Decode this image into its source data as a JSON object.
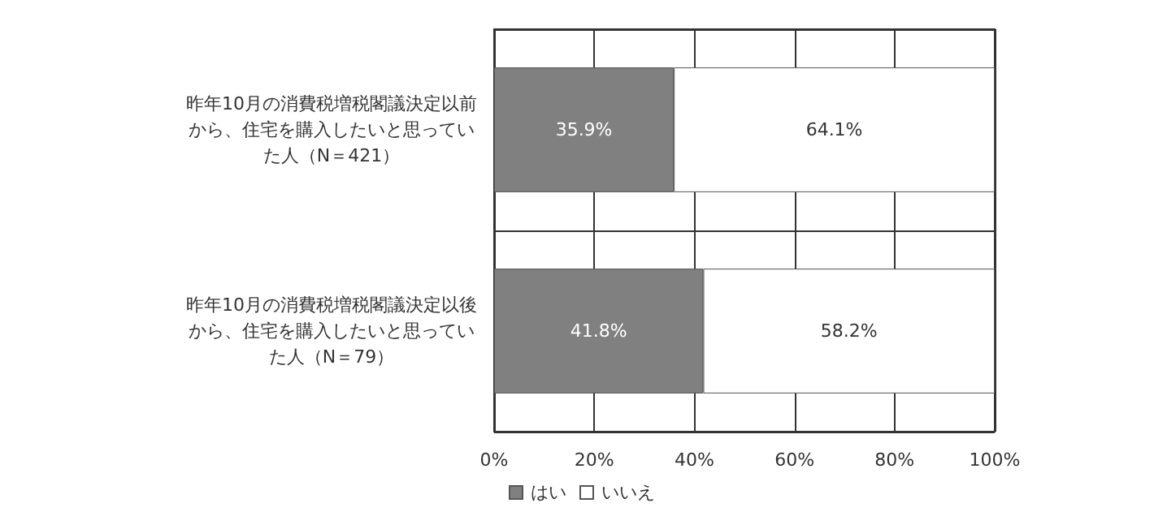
{
  "chart_data": {
    "type": "bar",
    "orientation": "horizontal",
    "stacked": true,
    "categories": [
      "昨年10月の消費税増税閣議決定以前から、住宅を購入したいと思っていた人（N＝421）",
      "昨年10月の消費税増税閣議決定以後から、住宅を購入したいと思っていた人（N＝79）"
    ],
    "series": [
      {
        "name": "はい",
        "color": "#808080",
        "values": [
          35.9,
          41.8
        ],
        "value_labels": [
          "35.9%",
          "41.8%"
        ]
      },
      {
        "name": "いいえ",
        "color": "#ffffff",
        "values": [
          64.1,
          58.2
        ],
        "value_labels": [
          "64.1%",
          "58.2%"
        ]
      }
    ],
    "xlim": [
      0,
      100
    ],
    "xticks": [
      {
        "value": 0,
        "label": "0%"
      },
      {
        "value": 20,
        "label": "20%"
      },
      {
        "value": 40,
        "label": "40%"
      },
      {
        "value": 60,
        "label": "60%"
      },
      {
        "value": 80,
        "label": "80%"
      },
      {
        "value": 100,
        "label": "100%"
      }
    ],
    "grid": true,
    "legend": "bottom"
  }
}
